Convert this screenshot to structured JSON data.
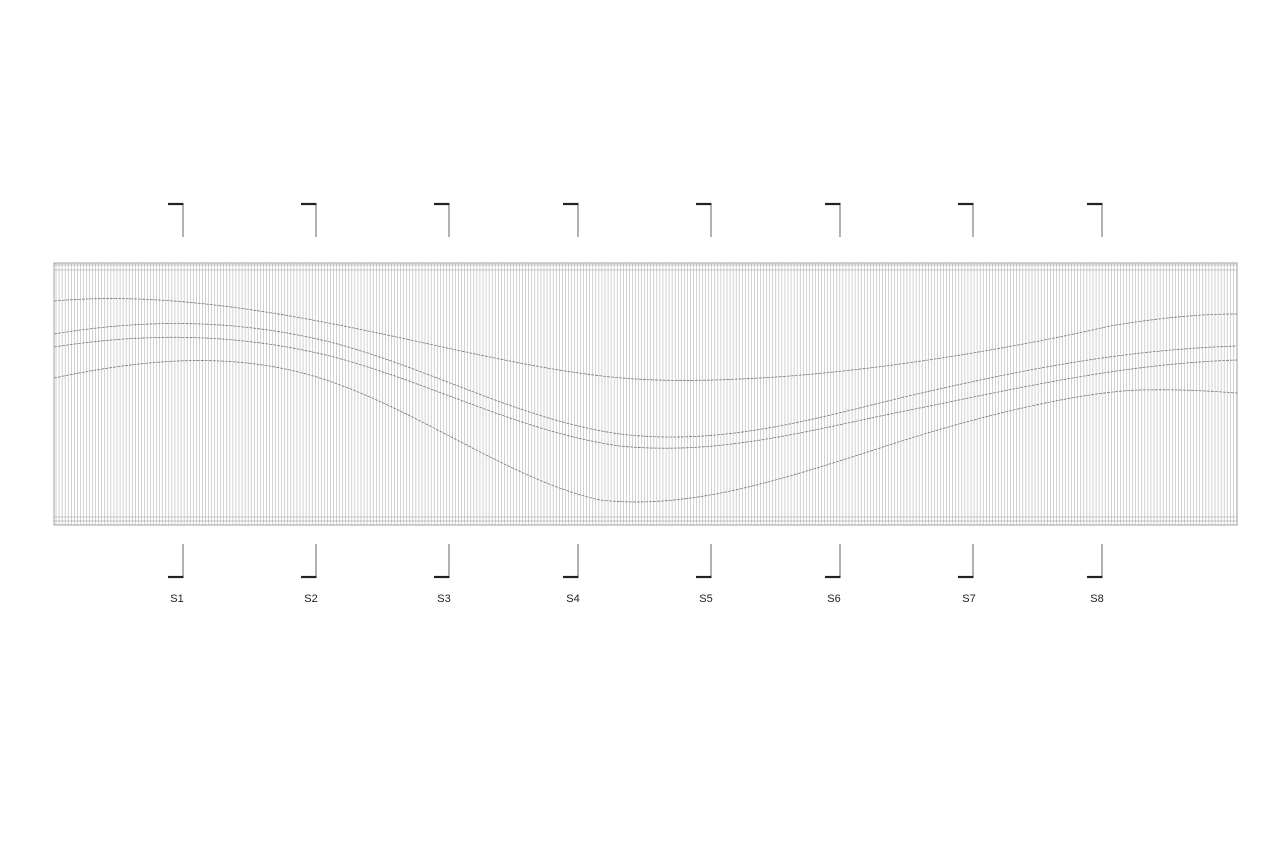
{
  "drawing": {
    "title": "",
    "colors": {
      "background": "#ffffff",
      "fins": "#9a9a9a",
      "frame": "#8a8a8a",
      "curves": "#7a7a7a",
      "markers": "#222222"
    }
  },
  "section_markers": [
    {
      "label": "S1"
    },
    {
      "label": "S2"
    },
    {
      "label": "S3"
    },
    {
      "label": "S4"
    },
    {
      "label": "S5"
    },
    {
      "label": "S6"
    },
    {
      "label": "S7"
    },
    {
      "label": "S8"
    }
  ]
}
